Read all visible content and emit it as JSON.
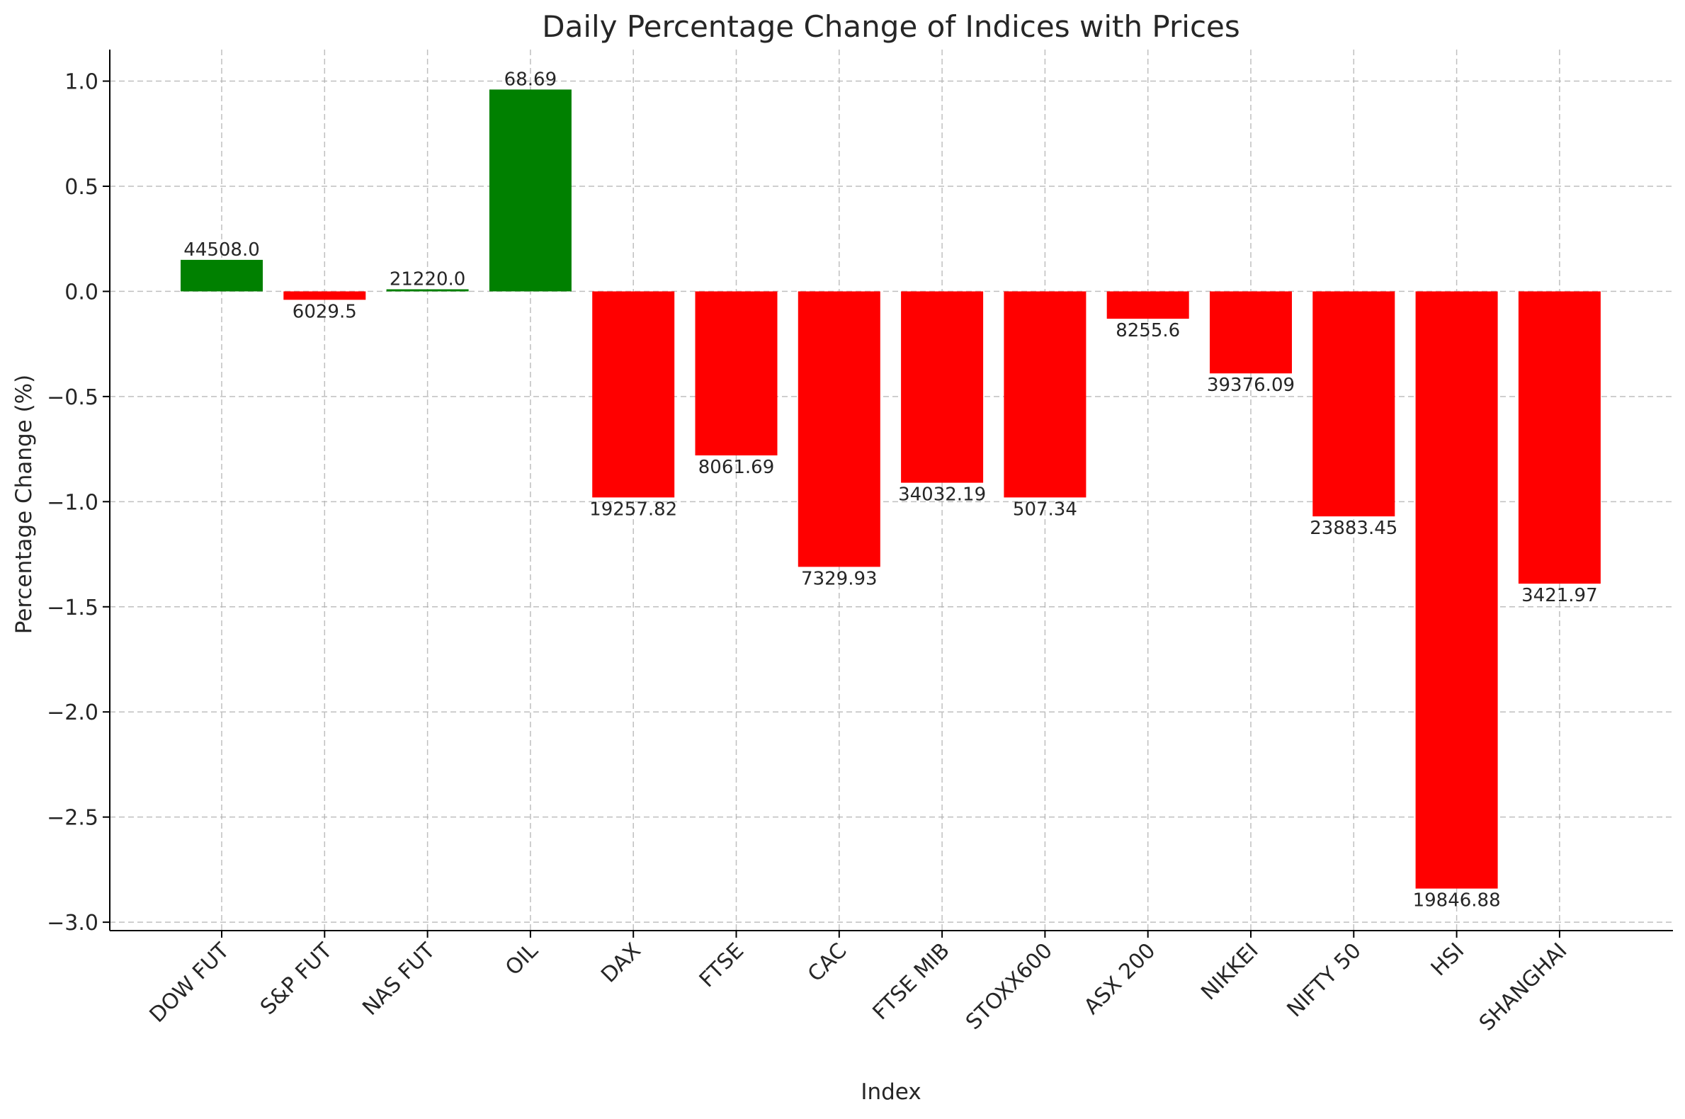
{
  "chart_data": {
    "type": "bar",
    "title": "Daily Percentage Change of Indices with Prices",
    "xlabel": "Index",
    "ylabel": "Percentage Change (%)",
    "categories": [
      "DOW FUT",
      "S&P FUT",
      "NAS FUT",
      "OIL",
      "DAX",
      "FTSE",
      "CAC",
      "FTSE MIB",
      "STOXX600",
      "ASX 200",
      "NIKKEI",
      "NIFTY 50",
      "HSI",
      "SHANGHAI"
    ],
    "values": [
      0.15,
      -0.04,
      0.01,
      0.96,
      -0.98,
      -0.78,
      -1.31,
      -0.91,
      -0.98,
      -0.13,
      -0.39,
      -1.07,
      -2.84,
      -1.39
    ],
    "price_labels": [
      "44508.0",
      "6029.5",
      "21220.0",
      "68.69",
      "19257.82",
      "8061.69",
      "7329.93",
      "34032.19",
      "507.34",
      "8255.6",
      "39376.09",
      "23883.45",
      "19846.88",
      "3421.97"
    ],
    "ylim": [
      -3.04,
      1.15
    ],
    "yticks": [
      1.0,
      0.5,
      0.0,
      -0.5,
      -1.0,
      -1.5,
      -2.0,
      -2.5,
      -3.0
    ],
    "ytick_labels": [
      "1.0",
      "0.5",
      "0.0",
      "−0.5",
      "−1.0",
      "−1.5",
      "−2.0",
      "−2.5",
      "−3.0"
    ],
    "grid": true,
    "colors": {
      "positive": "#008000",
      "negative": "#ff0000"
    }
  }
}
